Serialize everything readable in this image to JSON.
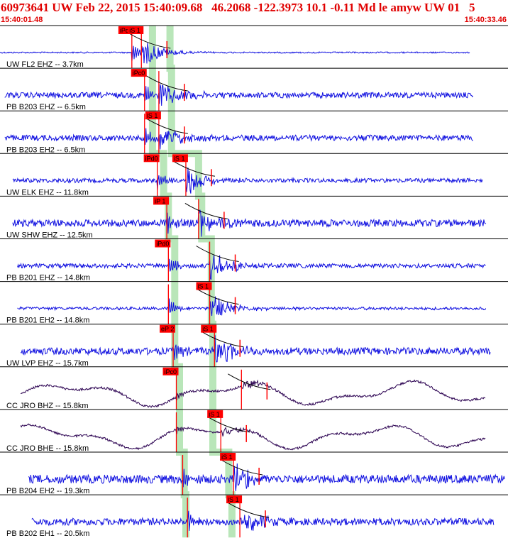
{
  "header": {
    "title": "60973641 UW Feb 22, 2015 15:40:09.68   46.2068 -122.3973 10.1 -0.11 Md le amyw UW 01   5",
    "start_time": "15:40:01.48",
    "end_time": "15:40:33.46"
  },
  "colors": {
    "trace": "#1010e0",
    "trace_broadband": "#2a0050",
    "pick": "#ff0000",
    "window": "#b9e6b9",
    "text": "#000000",
    "header": "#e00000"
  },
  "time_axis": {
    "start_s": 0,
    "end_s": 31.98
  },
  "origin_s": 8.2,
  "channels": [
    {
      "label": "UW FL2 EHZ -- 3.7km",
      "type": "sp",
      "p_time": 8.3,
      "s_time": 8.9,
      "p_label": "iPd0",
      "s_label": "iS 1",
      "p_w": 9.6,
      "s_w": 10.7,
      "amp": 1,
      "trace_start": 0.0,
      "trace_end": 29.6
    },
    {
      "label": "PB B203 EHZ -- 6.5km",
      "type": "sp",
      "p_time": 9.1,
      "s_time": 10.0,
      "p_label": "iPc0",
      "s_label": "",
      "p_w": 9.6,
      "s_w": 10.8,
      "amp": 4,
      "trace_start": 0.3,
      "trace_end": 29.8
    },
    {
      "label": "PB B203 EH2 -- 6.5km",
      "type": "sp",
      "p_time": 9.1,
      "s_time": 10.0,
      "p_label": "",
      "s_label": "iS 1",
      "p_w": 9.6,
      "s_w": 10.8,
      "amp": 4,
      "trace_start": 0.3,
      "trace_end": 29.8
    },
    {
      "label": "UW ELK EHZ -- 11.8km",
      "type": "sp",
      "p_time": 9.9,
      "s_time": 11.7,
      "p_label": "iPd0",
      "s_label": "iS 1",
      "p_w": 10.3,
      "s_w": 12.5,
      "amp": 3,
      "trace_start": 0.8,
      "trace_end": 30.4
    },
    {
      "label": "UW SHW EHZ -- 12.5km",
      "type": "sp",
      "p_time": 10.5,
      "s_time": 12.5,
      "p_label": "iP 1",
      "s_label": "",
      "p_w": 10.6,
      "s_w": 12.7,
      "amp": 5,
      "trace_start": 0.8,
      "trace_end": 30.6
    },
    {
      "label": "PB B201 EHZ -- 14.8km",
      "type": "sp",
      "p_time": 10.6,
      "s_time": 13.2,
      "p_label": "iPd0",
      "s_label": "",
      "p_w": 11.0,
      "s_w": 13.3,
      "amp": 3,
      "trace_start": 1.1,
      "trace_end": 30.6
    },
    {
      "label": "PB B201 EH2 -- 14.8km",
      "type": "sp",
      "p_time": 10.6,
      "s_time": 13.2,
      "p_label": "",
      "s_label": "iS 1",
      "p_w": 11.0,
      "s_w": 13.3,
      "amp": 2,
      "trace_start": 1.1,
      "trace_end": 30.6
    },
    {
      "label": "UW LVP EHZ -- 15.7km",
      "type": "sp",
      "p_time": 10.9,
      "s_time": 13.5,
      "p_label": "eP 2",
      "s_label": "iS 1",
      "p_w": 11.0,
      "s_w": 13.4,
      "amp": 5,
      "trace_start": 1.3,
      "trace_end": 30.9
    },
    {
      "label": "CC JRO BHZ -- 15.8km",
      "type": "bb",
      "p_time": 11.1,
      "s_time": 15.2,
      "p_label": "iPc0",
      "s_label": "",
      "p_w": 11.3,
      "s_w": 13.4,
      "amp": 2,
      "trace_start": 1.3,
      "trace_end": 30.6
    },
    {
      "label": "CC JRO BHE -- 15.8km",
      "type": "bb",
      "p_time": 11.1,
      "s_time": 13.9,
      "p_label": "",
      "s_label": "iS 1",
      "p_w": 11.3,
      "s_w": 13.4,
      "amp": 2,
      "trace_start": 1.3,
      "trace_end": 30.6
    },
    {
      "label": "PB B204 EH2 -- 19.3km",
      "type": "sp",
      "p_time": 11.5,
      "s_time": 14.7,
      "p_label": "",
      "s_label": "iS 1",
      "p_w": 11.6,
      "s_w": 14.4,
      "amp": 6,
      "trace_start": 1.8,
      "trace_end": 31.8
    },
    {
      "label": "PB B202 EH1 -- 20.5km",
      "type": "sp",
      "p_time": 11.8,
      "s_time": 15.1,
      "p_label": "",
      "s_label": "iS 1",
      "p_w": 11.7,
      "s_w": 14.6,
      "amp": 5,
      "trace_start": 2.0,
      "trace_end": 31.1
    }
  ]
}
